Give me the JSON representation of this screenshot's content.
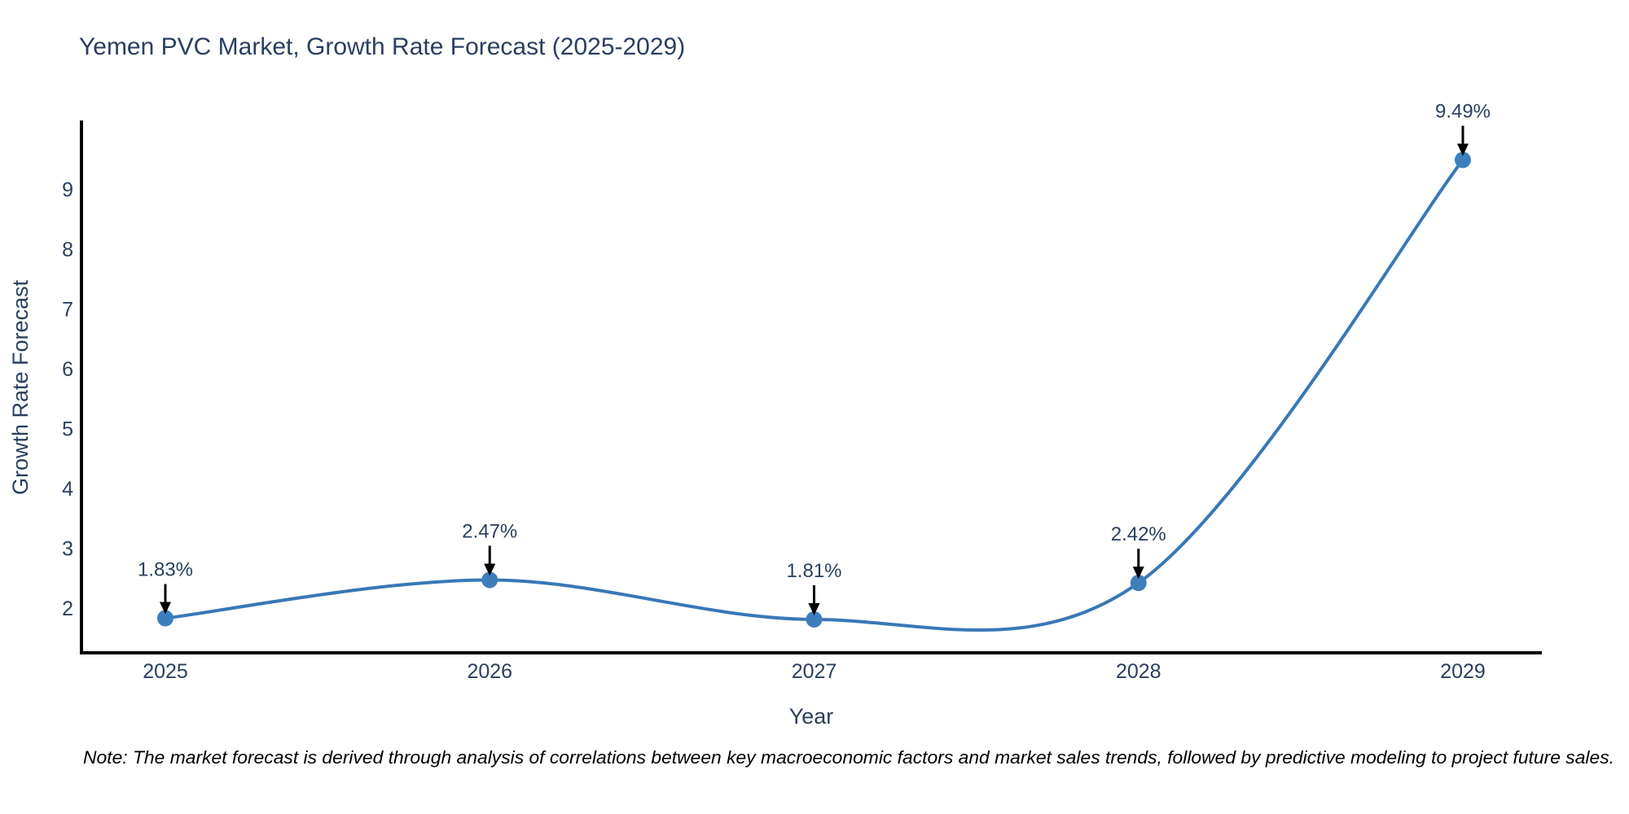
{
  "title": "Yemen PVC Market, Growth Rate Forecast (2025-2029)",
  "note": "Note: The market forecast is derived through analysis of correlations between key macroeconomic factors and market sales trends, followed by predictive modeling to project future sales.",
  "colors": {
    "line": "#3878b6",
    "marker": "#3d7fbd",
    "text": "#2a3f5f",
    "axis": "#000000",
    "arrow": "#000000",
    "note_text": "#000000",
    "background": "#ffffff"
  },
  "chart_data": {
    "type": "line",
    "title": "Yemen PVC Market, Growth Rate Forecast (2025-2029)",
    "xlabel": "Year",
    "ylabel": "Growth Rate Forecast",
    "x": [
      2025,
      2026,
      2027,
      2028,
      2029
    ],
    "series": [
      {
        "name": "Growth Rate Forecast",
        "values": [
          1.83,
          2.47,
          1.81,
          2.42,
          9.49
        ],
        "point_labels": [
          "1.83%",
          "2.47%",
          "1.81%",
          "2.42%",
          "9.49%"
        ]
      }
    ],
    "yticks": [
      2,
      3,
      4,
      5,
      6,
      7,
      8,
      9
    ],
    "xticks": [
      "2025",
      "2026",
      "2027",
      "2028",
      "2029"
    ],
    "xlim": [
      2024.74,
      2029.26
    ],
    "ylim": [
      1.25,
      10.12
    ],
    "grid": false,
    "legend": "none",
    "line_shape": "spline",
    "marker": "circle",
    "annotations": "value labels with downward arrows above each point"
  }
}
